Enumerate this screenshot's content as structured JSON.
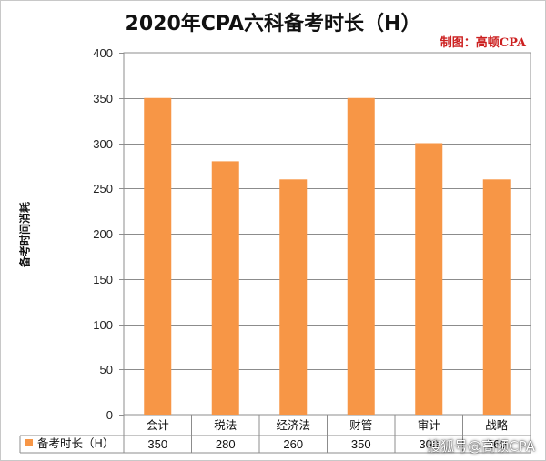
{
  "chart_data": {
    "type": "bar",
    "title": "2020年CPA六科备考时长（H）",
    "credit": "制图：高顿CPA",
    "ylabel": "备考时间消耗",
    "xlabel": "",
    "categories": [
      "会计",
      "税法",
      "经济法",
      "财管",
      "审计",
      "战略"
    ],
    "series": [
      {
        "name": "备考时长（H）",
        "values": [
          350,
          280,
          260,
          350,
          300,
          260
        ],
        "color": "#F79646"
      }
    ],
    "ylim": [
      0,
      400
    ],
    "yticks": [
      0,
      50,
      100,
      150,
      200,
      250,
      300,
      350,
      400
    ],
    "grid": true,
    "legend": "data-table-left",
    "data_table": true
  },
  "watermark": "搜狐号@高顿CPA"
}
